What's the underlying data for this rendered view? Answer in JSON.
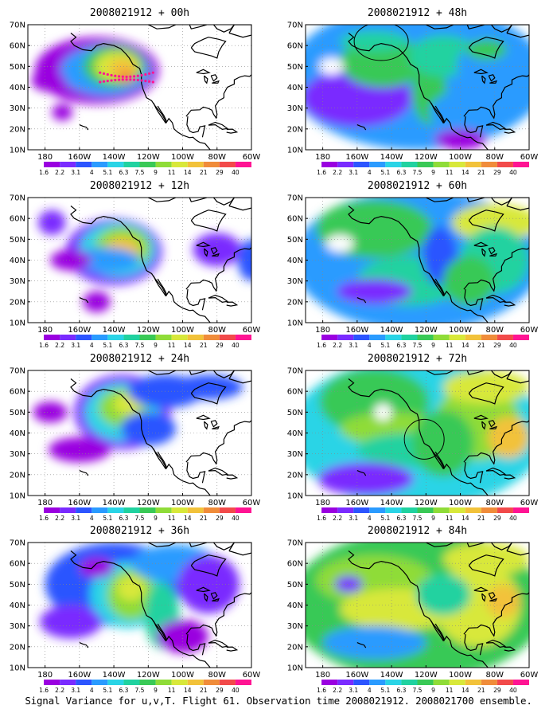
{
  "figure": {
    "caption": "Signal Variance for u,v,T. Flight 61. Observation time 2008021912. 2008021700 ensemble."
  },
  "axes": {
    "lat_labels": [
      "70N",
      "60N",
      "50N",
      "40N",
      "30N",
      "20N",
      "10N"
    ],
    "lon_labels": [
      "180",
      "160W",
      "140W",
      "120W",
      "100W",
      "80W",
      "60W"
    ],
    "lat_range": [
      10,
      70
    ],
    "lon_range": [
      -190,
      -60
    ]
  },
  "colorbar": {
    "labels": [
      "1.6",
      "2.2",
      "3.1",
      "4",
      "5.1",
      "6.3",
      "7.5",
      "9",
      "11",
      "14",
      "21",
      "29",
      "40"
    ],
    "colors": [
      "#ffffff",
      "#9a00e0",
      "#7a2bff",
      "#2c55ff",
      "#2a9bff",
      "#2ad4e6",
      "#20d2a0",
      "#39c956",
      "#8fdc38",
      "#d8e83a",
      "#f2c23a",
      "#f08c3a",
      "#f24a4a",
      "#ff1493"
    ]
  },
  "panels": [
    {
      "title": "2008021912 + 00h",
      "show_colorbar_labels": true
    },
    {
      "title": "2008021912 + 48h",
      "show_colorbar_labels": true
    },
    {
      "title": "2008021912 + 12h",
      "show_colorbar_labels": true
    },
    {
      "title": "2008021912 + 60h",
      "show_colorbar_labels": true
    },
    {
      "title": "2008021912 + 24h",
      "show_colorbar_labels": true
    },
    {
      "title": "2008021912 + 72h",
      "show_colorbar_labels": true
    },
    {
      "title": "2008021912 + 36h",
      "show_colorbar_labels": true
    },
    {
      "title": "2008021912 + 84h",
      "show_colorbar_labels": true
    }
  ]
}
